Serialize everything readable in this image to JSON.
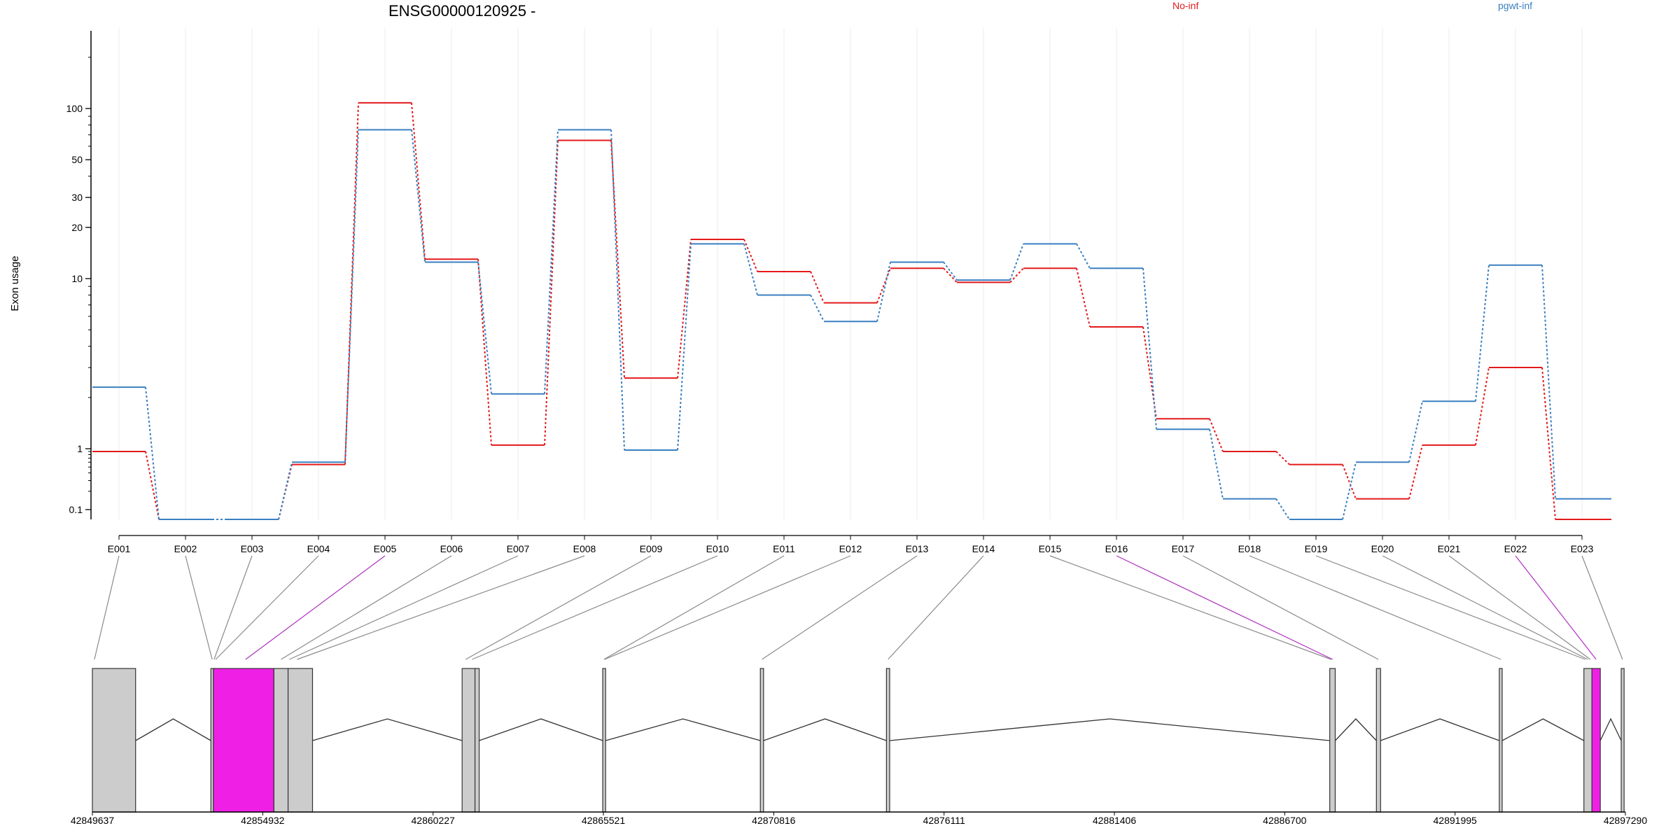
{
  "chart_data": {
    "type": "line",
    "title": "ENSG00000120925 -",
    "ylabel": "Exon usage",
    "xlabel": "",
    "y_scale": "log",
    "y_ticks": [
      0.1,
      1,
      10,
      20,
      30,
      50,
      100
    ],
    "y_tick_labels": [
      "0.1",
      "1",
      "10",
      "20",
      "30",
      "50",
      "100"
    ],
    "legend_placement": "top-right",
    "grid": "vertical",
    "categories": [
      "E001",
      "E002",
      "E003",
      "E004",
      "E005",
      "E006",
      "E007",
      "E008",
      "E009",
      "E010",
      "E011",
      "E012",
      "E013",
      "E014",
      "E015",
      "E016",
      "E017",
      "E018",
      "E019",
      "E020",
      "E021",
      "E022",
      "E023"
    ],
    "series": [
      {
        "name": "No-inf",
        "color": "#e31a1c",
        "values": [
          0.9,
          0.07,
          0.07,
          0.55,
          108,
          13,
          1.05,
          65,
          2.6,
          17,
          11,
          7.2,
          11.5,
          9.5,
          11.5,
          5.2,
          1.5,
          0.9,
          0.55,
          0.15,
          1.05,
          3.0,
          0.07
        ]
      },
      {
        "name": "pgwt-inf",
        "color": "#3a7fc1",
        "values": [
          2.3,
          0.07,
          0.07,
          0.6,
          75,
          12.5,
          2.1,
          75,
          0.95,
          16,
          8,
          5.6,
          12.5,
          9.8,
          16,
          11.5,
          1.3,
          0.15,
          0.07,
          0.6,
          1.9,
          12,
          0.15
        ]
      }
    ],
    "genomic_axis": {
      "tick_labels": [
        "42849637",
        "42854932",
        "42860227",
        "42865521",
        "42870816",
        "42876111",
        "42881406",
        "42886700",
        "42891995",
        "42897290"
      ]
    },
    "gene_model": {
      "start": 42849637,
      "end": 42897290,
      "exon_fill": "#cccccc",
      "highlight_fill": "#f01fe6",
      "exons": [
        {
          "start": 42849637,
          "end": 42850980,
          "highlight": false
        },
        {
          "start": 42853320,
          "end": 42853400,
          "highlight": false
        },
        {
          "start": 42853400,
          "end": 42855280,
          "highlight": true
        },
        {
          "start": 42855280,
          "end": 42855720,
          "highlight": false
        },
        {
          "start": 42855720,
          "end": 42856480,
          "highlight": false
        },
        {
          "start": 42861130,
          "end": 42861530,
          "highlight": false
        },
        {
          "start": 42861530,
          "end": 42861660,
          "highlight": false
        },
        {
          "start": 42865500,
          "end": 42865590,
          "highlight": false
        },
        {
          "start": 42870400,
          "end": 42870500,
          "highlight": false
        },
        {
          "start": 42874320,
          "end": 42874420,
          "highlight": false
        },
        {
          "start": 42888100,
          "end": 42888270,
          "highlight": false
        },
        {
          "start": 42889550,
          "end": 42889680,
          "highlight": false
        },
        {
          "start": 42893370,
          "end": 42893460,
          "highlight": false
        },
        {
          "start": 42896000,
          "end": 42896250,
          "highlight": false
        },
        {
          "start": 42896250,
          "end": 42896510,
          "highlight": true
        },
        {
          "start": 42897160,
          "end": 42897250,
          "highlight": false
        }
      ],
      "exon_bin_links": [
        {
          "bin": "E001",
          "pos": 42849700
        },
        {
          "bin": "E002",
          "pos": 42853360
        },
        {
          "bin": "E003",
          "pos": 42853420
        },
        {
          "bin": "E004",
          "pos": 42853470
        },
        {
          "bin": "E005",
          "pos": 42854400
        },
        {
          "bin": "E006",
          "pos": 42855500
        },
        {
          "bin": "E007",
          "pos": 42855760
        },
        {
          "bin": "E008",
          "pos": 42856000
        },
        {
          "bin": "E009",
          "pos": 42861240
        },
        {
          "bin": "E010",
          "pos": 42861440
        },
        {
          "bin": "E011",
          "pos": 42865540
        },
        {
          "bin": "E012",
          "pos": 42865560
        },
        {
          "bin": "E013",
          "pos": 42870450
        },
        {
          "bin": "E014",
          "pos": 42874370
        },
        {
          "bin": "E015",
          "pos": 42888140
        },
        {
          "bin": "E016",
          "pos": 42888190
        },
        {
          "bin": "E017",
          "pos": 42889610
        },
        {
          "bin": "E018",
          "pos": 42893420
        },
        {
          "bin": "E019",
          "pos": 42896040
        },
        {
          "bin": "E020",
          "pos": 42896120
        },
        {
          "bin": "E021",
          "pos": 42896200
        },
        {
          "bin": "E022",
          "pos": 42896380
        },
        {
          "bin": "E023",
          "pos": 42897200
        }
      ]
    }
  }
}
